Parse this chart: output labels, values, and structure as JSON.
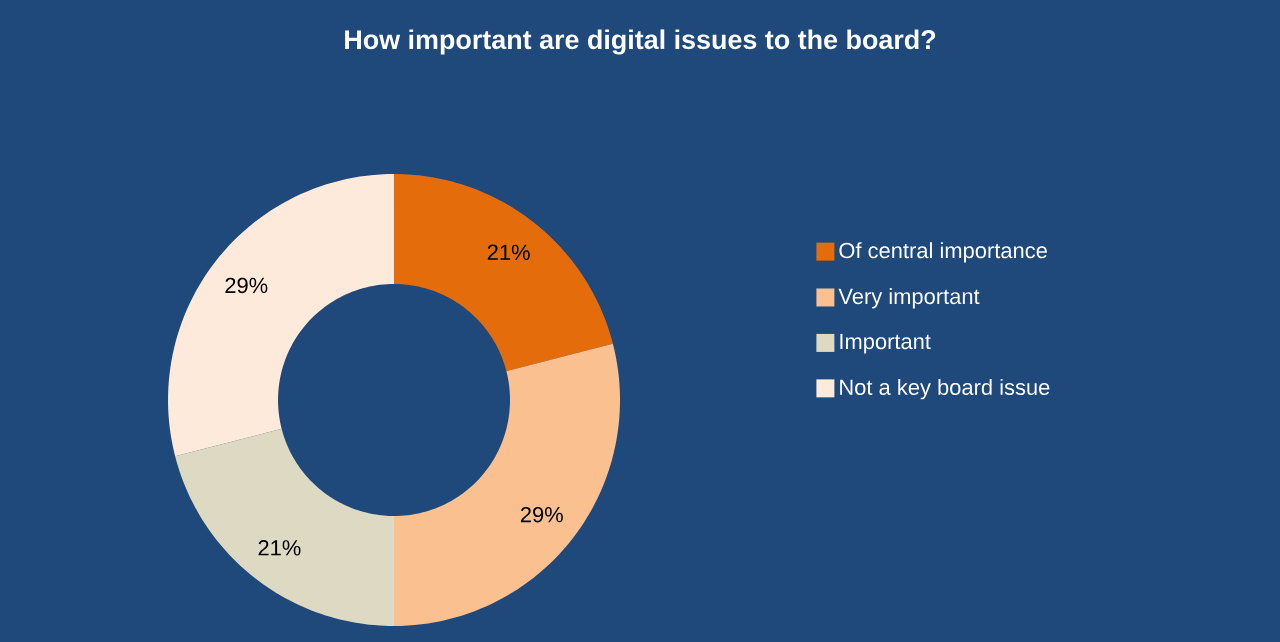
{
  "chart_data": {
    "type": "donut",
    "title": "How important are digital issues to the board?",
    "categories": [
      "Of central importance",
      "Very important",
      "Important",
      "Not a key board issue"
    ],
    "values": [
      21,
      29,
      21,
      29
    ],
    "value_labels": [
      "21%",
      "29%",
      "21%",
      "29%"
    ],
    "colors": [
      "#e46c0a",
      "#fac090",
      "#ddd9c3",
      "#fdeada"
    ],
    "legend": "right"
  }
}
